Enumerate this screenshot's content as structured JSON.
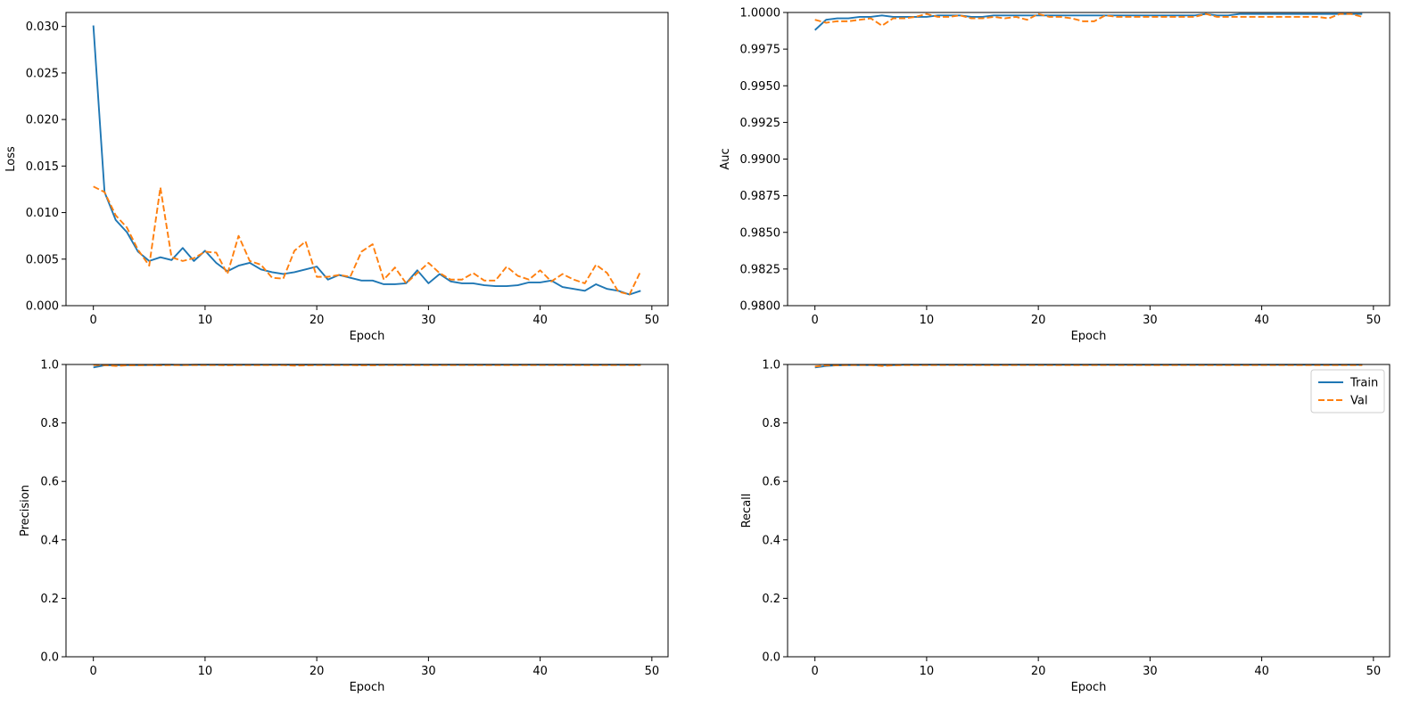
{
  "colors": {
    "train": "#1f77b4",
    "val": "#ff7f0e",
    "axes": "#000000",
    "background": "#ffffff"
  },
  "chart_data": [
    {
      "type": "line",
      "xlabel": "Epoch",
      "ylabel": "Loss",
      "xlim": [
        -2.45,
        51.45
      ],
      "ylim": [
        0,
        0.0315
      ],
      "xticks": [
        0,
        10,
        20,
        30,
        40,
        50
      ],
      "xtick_labels": [
        "0",
        "10",
        "20",
        "30",
        "40",
        "50"
      ],
      "yticks": [
        0,
        0.005,
        0.01,
        0.015,
        0.02,
        0.025,
        0.03
      ],
      "ytick_labels": [
        "0.000",
        "0.005",
        "0.010",
        "0.015",
        "0.020",
        "0.025",
        "0.030"
      ],
      "grid": false,
      "legend": null,
      "x": [
        0,
        1,
        2,
        3,
        4,
        5,
        6,
        7,
        8,
        9,
        10,
        11,
        12,
        13,
        14,
        15,
        16,
        17,
        18,
        19,
        20,
        21,
        22,
        23,
        24,
        25,
        26,
        27,
        28,
        29,
        30,
        31,
        32,
        33,
        34,
        35,
        36,
        37,
        38,
        39,
        40,
        41,
        42,
        43,
        44,
        45,
        46,
        47,
        48,
        49
      ],
      "series": [
        {
          "name": "Train",
          "style": "solid",
          "values": [
            0.0301,
            0.0122,
            0.0092,
            0.0079,
            0.0058,
            0.0048,
            0.0052,
            0.0049,
            0.0062,
            0.0048,
            0.0059,
            0.0046,
            0.0037,
            0.0043,
            0.0046,
            0.0039,
            0.0036,
            0.0034,
            0.0036,
            0.0039,
            0.0042,
            0.0028,
            0.0033,
            0.003,
            0.0027,
            0.0027,
            0.0023,
            0.0023,
            0.0024,
            0.0038,
            0.0024,
            0.0034,
            0.0026,
            0.0024,
            0.0024,
            0.0022,
            0.0021,
            0.0021,
            0.0022,
            0.0025,
            0.0025,
            0.0027,
            0.002,
            0.0018,
            0.0016,
            0.0023,
            0.0018,
            0.0016,
            0.0012,
            0.0016
          ]
        },
        {
          "name": "Val",
          "style": "dashed",
          "values": [
            0.0128,
            0.0122,
            0.0097,
            0.0084,
            0.006,
            0.0043,
            0.0127,
            0.0052,
            0.0048,
            0.0051,
            0.0058,
            0.0057,
            0.0034,
            0.0075,
            0.0048,
            0.0044,
            0.003,
            0.0029,
            0.0059,
            0.0069,
            0.0031,
            0.0031,
            0.0033,
            0.0031,
            0.0058,
            0.0066,
            0.0028,
            0.0041,
            0.0024,
            0.0035,
            0.0046,
            0.0035,
            0.0028,
            0.0028,
            0.0035,
            0.0027,
            0.0027,
            0.0042,
            0.0032,
            0.0028,
            0.0038,
            0.0026,
            0.0034,
            0.0028,
            0.0024,
            0.0044,
            0.0035,
            0.0015,
            0.0012,
            0.0037
          ]
        }
      ]
    },
    {
      "type": "line",
      "xlabel": "Epoch",
      "ylabel": "Auc",
      "xlim": [
        -2.45,
        51.45
      ],
      "ylim": [
        0.98,
        1.0
      ],
      "xticks": [
        0,
        10,
        20,
        30,
        40,
        50
      ],
      "xtick_labels": [
        "0",
        "10",
        "20",
        "30",
        "40",
        "50"
      ],
      "yticks": [
        0.98,
        0.9825,
        0.985,
        0.9875,
        0.99,
        0.9925,
        0.995,
        0.9975,
        1.0
      ],
      "ytick_labels": [
        "0.9800",
        "0.9825",
        "0.9850",
        "0.9875",
        "0.9900",
        "0.9925",
        "0.9950",
        "0.9975",
        "1.0000"
      ],
      "grid": false,
      "legend": null,
      "x": [
        0,
        1,
        2,
        3,
        4,
        5,
        6,
        7,
        8,
        9,
        10,
        11,
        12,
        13,
        14,
        15,
        16,
        17,
        18,
        19,
        20,
        21,
        22,
        23,
        24,
        25,
        26,
        27,
        28,
        29,
        30,
        31,
        32,
        33,
        34,
        35,
        36,
        37,
        38,
        39,
        40,
        41,
        42,
        43,
        44,
        45,
        46,
        47,
        48,
        49
      ],
      "series": [
        {
          "name": "Train",
          "style": "solid",
          "values": [
            0.9988,
            0.9995,
            0.9996,
            0.9996,
            0.9997,
            0.9997,
            0.9998,
            0.9997,
            0.9997,
            0.9997,
            0.9997,
            0.9998,
            0.9998,
            0.9998,
            0.9997,
            0.9997,
            0.9998,
            0.9998,
            0.9998,
            0.9998,
            0.9998,
            0.9998,
            0.9998,
            0.9998,
            0.9998,
            0.9998,
            0.9998,
            0.9998,
            0.9998,
            0.9998,
            0.9998,
            0.9998,
            0.9998,
            0.9998,
            0.9998,
            0.9999,
            0.9998,
            0.9998,
            0.9999,
            0.9999,
            0.9999,
            0.9999,
            0.9999,
            0.9999,
            0.9999,
            0.9999,
            0.9999,
            0.9999,
            0.9999,
            0.9999
          ]
        },
        {
          "name": "Val",
          "style": "dashed",
          "values": [
            0.9995,
            0.9993,
            0.9994,
            0.9994,
            0.9995,
            0.9996,
            0.9991,
            0.9996,
            0.9996,
            0.9997,
            0.9999,
            0.9997,
            0.9997,
            0.9998,
            0.9996,
            0.9996,
            0.9997,
            0.9996,
            0.9997,
            0.9995,
            0.9999,
            0.9997,
            0.9997,
            0.9996,
            0.9994,
            0.9994,
            0.9998,
            0.9997,
            0.9997,
            0.9997,
            0.9997,
            0.9997,
            0.9997,
            0.9997,
            0.9997,
            0.9999,
            0.9997,
            0.9997,
            0.9997,
            0.9997,
            0.9997,
            0.9997,
            0.9997,
            0.9997,
            0.9997,
            0.9997,
            0.9996,
            0.9999,
            0.9999,
            0.9997
          ]
        }
      ]
    },
    {
      "type": "line",
      "xlabel": "Epoch",
      "ylabel": "Precision",
      "xlim": [
        -2.45,
        51.45
      ],
      "ylim": [
        0,
        1.0
      ],
      "xticks": [
        0,
        10,
        20,
        30,
        40,
        50
      ],
      "xtick_labels": [
        "0",
        "10",
        "20",
        "30",
        "40",
        "50"
      ],
      "yticks": [
        0,
        0.2,
        0.4,
        0.6,
        0.8,
        1.0
      ],
      "ytick_labels": [
        "0.0",
        "0.2",
        "0.4",
        "0.6",
        "0.8",
        "1.0"
      ],
      "grid": false,
      "legend": null,
      "x": [
        0,
        1,
        2,
        3,
        4,
        5,
        6,
        7,
        8,
        9,
        10,
        11,
        12,
        13,
        14,
        15,
        16,
        17,
        18,
        19,
        20,
        21,
        22,
        23,
        24,
        25,
        26,
        27,
        28,
        29,
        30,
        31,
        32,
        33,
        34,
        35,
        36,
        37,
        38,
        39,
        40,
        41,
        42,
        43,
        44,
        45,
        46,
        47,
        48,
        49
      ],
      "series": [
        {
          "name": "Train",
          "style": "solid",
          "values": [
            0.99,
            0.997,
            0.998,
            0.998,
            0.998,
            0.998,
            0.999,
            0.999,
            0.998,
            0.999,
            0.999,
            0.999,
            0.999,
            0.999,
            0.999,
            0.999,
            0.999,
            0.999,
            0.999,
            0.999,
            0.999,
            0.999,
            0.999,
            0.999,
            0.999,
            0.999,
            0.999,
            0.999,
            0.999,
            0.999,
            0.999,
            0.999,
            0.999,
            0.999,
            0.999,
            0.999,
            0.999,
            0.999,
            0.999,
            0.999,
            0.999,
            0.999,
            0.999,
            0.999,
            0.999,
            0.999,
            0.999,
            0.999,
            0.999,
            0.999
          ]
        },
        {
          "name": "Val",
          "style": "dashed",
          "values": [
            0.998,
            0.998,
            0.995,
            0.997,
            0.997,
            0.998,
            0.997,
            0.998,
            0.998,
            0.998,
            0.998,
            0.998,
            0.997,
            0.998,
            0.998,
            0.998,
            0.998,
            0.998,
            0.996,
            0.997,
            0.998,
            0.998,
            0.998,
            0.998,
            0.997,
            0.997,
            0.998,
            0.998,
            0.998,
            0.998,
            0.998,
            0.998,
            0.998,
            0.998,
            0.998,
            0.998,
            0.998,
            0.998,
            0.998,
            0.998,
            0.998,
            0.998,
            0.998,
            0.998,
            0.998,
            0.998,
            0.998,
            0.998,
            0.998,
            0.998
          ]
        }
      ]
    },
    {
      "type": "line",
      "xlabel": "Epoch",
      "ylabel": "Recall",
      "xlim": [
        -2.45,
        51.45
      ],
      "ylim": [
        0,
        1.0
      ],
      "xticks": [
        0,
        10,
        20,
        30,
        40,
        50
      ],
      "xtick_labels": [
        "0",
        "10",
        "20",
        "30",
        "40",
        "50"
      ],
      "yticks": [
        0,
        0.2,
        0.4,
        0.6,
        0.8,
        1.0
      ],
      "ytick_labels": [
        "0.0",
        "0.2",
        "0.4",
        "0.6",
        "0.8",
        "1.0"
      ],
      "grid": false,
      "legend": "top-right",
      "x": [
        0,
        1,
        2,
        3,
        4,
        5,
        6,
        7,
        8,
        9,
        10,
        11,
        12,
        13,
        14,
        15,
        16,
        17,
        18,
        19,
        20,
        21,
        22,
        23,
        24,
        25,
        26,
        27,
        28,
        29,
        30,
        31,
        32,
        33,
        34,
        35,
        36,
        37,
        38,
        39,
        40,
        41,
        42,
        43,
        44,
        45,
        46,
        47,
        48,
        49
      ],
      "series": [
        {
          "name": "Train",
          "style": "solid",
          "values": [
            0.99,
            0.995,
            0.997,
            0.998,
            0.998,
            0.998,
            0.998,
            0.998,
            0.999,
            0.999,
            0.999,
            0.999,
            0.999,
            0.999,
            0.999,
            0.999,
            0.999,
            0.999,
            0.999,
            0.999,
            0.999,
            0.999,
            0.999,
            0.999,
            0.999,
            0.999,
            0.999,
            0.999,
            0.999,
            0.999,
            0.999,
            0.999,
            0.999,
            0.999,
            0.999,
            0.999,
            0.999,
            0.999,
            0.999,
            0.999,
            0.999,
            0.999,
            0.999,
            0.999,
            0.999,
            0.999,
            0.999,
            0.999,
            0.999,
            0.999
          ]
        },
        {
          "name": "Val",
          "style": "dashed",
          "values": [
            0.993,
            0.997,
            0.997,
            0.998,
            0.998,
            0.998,
            0.995,
            0.997,
            0.998,
            0.998,
            0.998,
            0.998,
            0.998,
            0.998,
            0.998,
            0.998,
            0.998,
            0.998,
            0.998,
            0.998,
            0.998,
            0.998,
            0.998,
            0.998,
            0.998,
            0.998,
            0.998,
            0.998,
            0.998,
            0.998,
            0.998,
            0.998,
            0.998,
            0.998,
            0.998,
            0.998,
            0.998,
            0.998,
            0.998,
            0.998,
            0.998,
            0.998,
            0.998,
            0.998,
            0.998,
            0.998,
            0.998,
            0.998,
            0.998,
            0.998
          ]
        }
      ]
    }
  ]
}
